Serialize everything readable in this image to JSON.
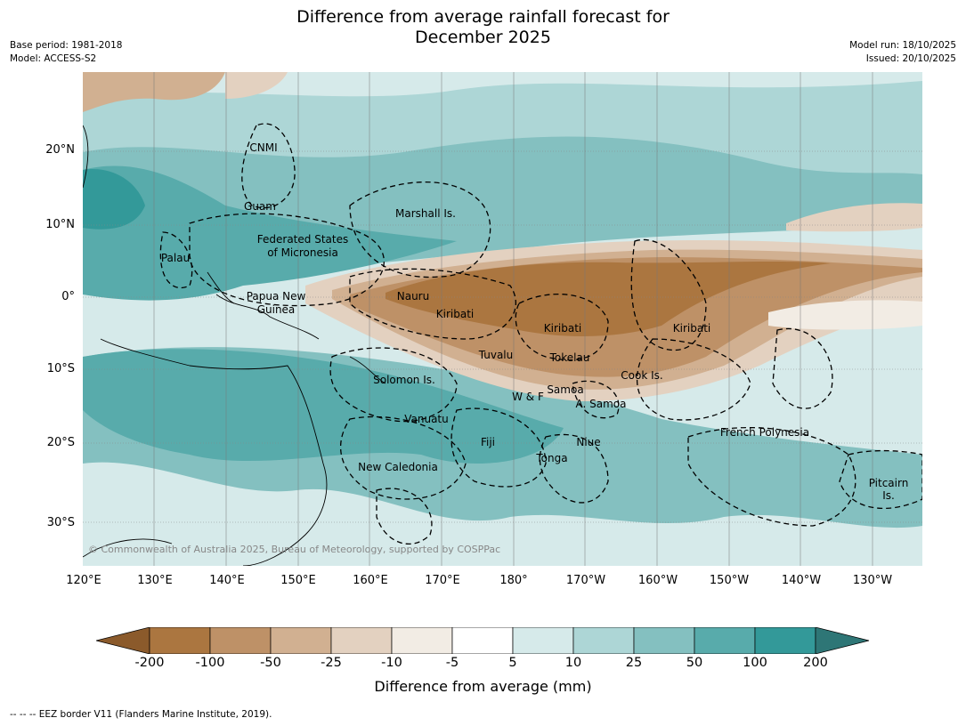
{
  "title_line1": "Difference from average rainfall forecast for",
  "title_line2": "December 2025",
  "meta_left": [
    "Base period: 1981-2018",
    "Model: ACCESS-S2"
  ],
  "meta_right": [
    "Model run: 18/10/2025",
    "Issued: 20/10/2025"
  ],
  "lat_ticks": [
    "20°N",
    "10°N",
    "0°",
    "10°S",
    "20°S",
    "30°S"
  ],
  "lon_ticks": [
    "120°E",
    "130°E",
    "140°E",
    "150°E",
    "160°E",
    "170°E",
    "180°",
    "170°W",
    "160°W",
    "150°W",
    "140°W",
    "130°W"
  ],
  "region_labels": [
    "CNMI",
    "Guam",
    "Marshall Is.",
    "Federated States",
    "of Micronesia",
    "Palau",
    "Papua New",
    "Guinea",
    "Nauru",
    "Kiribati",
    "Kiribati",
    "Kiribati",
    "Tuvalu",
    "Tokelau",
    "Cook Is.",
    "Solomon Is.",
    "Samoa",
    "W & F",
    "A. Samoa",
    "Vanuatu",
    "Fiji",
    "Niue",
    "Tonga",
    "New Caledonia",
    "French Polynesia",
    "Pitcairn",
    "Is."
  ],
  "copyright": "© Commonwealth of Australia 2025, Bureau of Meteorology, supported by COSPPac",
  "colorbar": {
    "ticks": [
      "-200",
      "-100",
      "-50",
      "-25",
      "-10",
      "-5",
      "5",
      "10",
      "25",
      "50",
      "100",
      "200"
    ],
    "colors": [
      "#8b5a2b",
      "#ab7640",
      "#be9167",
      "#d1b091",
      "#e3d1c0",
      "#f2ece4",
      "#ffffff",
      "#d6eaea",
      "#add6d6",
      "#84c0c0",
      "#58abab",
      "#339999",
      "#2e7676"
    ],
    "label": "Difference from average (mm)"
  },
  "footer": "--  --  -- EEZ border V11 (Flanders Marine Institute, 2019)."
}
